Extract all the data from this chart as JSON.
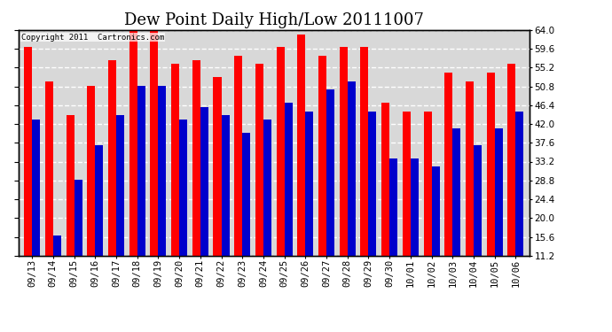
{
  "title": "Dew Point Daily High/Low 20111007",
  "copyright": "Copyright 2011  Cartronics.com",
  "dates": [
    "09/13",
    "09/14",
    "09/15",
    "09/16",
    "09/17",
    "09/18",
    "09/19",
    "09/20",
    "09/21",
    "09/22",
    "09/23",
    "09/24",
    "09/25",
    "09/26",
    "09/27",
    "09/28",
    "09/29",
    "09/30",
    "10/01",
    "10/02",
    "10/03",
    "10/04",
    "10/05",
    "10/06"
  ],
  "highs": [
    60,
    52,
    44,
    51,
    57,
    64,
    64,
    56,
    57,
    53,
    58,
    56,
    60,
    63,
    58,
    60,
    60,
    47,
    45,
    45,
    54,
    52,
    54,
    56
  ],
  "lows": [
    43,
    16,
    29,
    37,
    44,
    51,
    51,
    43,
    46,
    44,
    40,
    43,
    47,
    45,
    50,
    52,
    45,
    34,
    34,
    32,
    41,
    37,
    41,
    45
  ],
  "high_color": "#ff0000",
  "low_color": "#0000cc",
  "bg_color": "#ffffff",
  "plot_bg_color": "#d8d8d8",
  "grid_color": "#ffffff",
  "ylim_min": 11.2,
  "ylim_max": 64.0,
  "yticks": [
    11.2,
    15.6,
    20.0,
    24.4,
    28.8,
    33.2,
    37.6,
    42.0,
    46.4,
    50.8,
    55.2,
    59.6,
    64.0
  ],
  "bar_width": 0.38,
  "title_fontsize": 13,
  "tick_fontsize": 7.5,
  "copyright_fontsize": 6.5
}
